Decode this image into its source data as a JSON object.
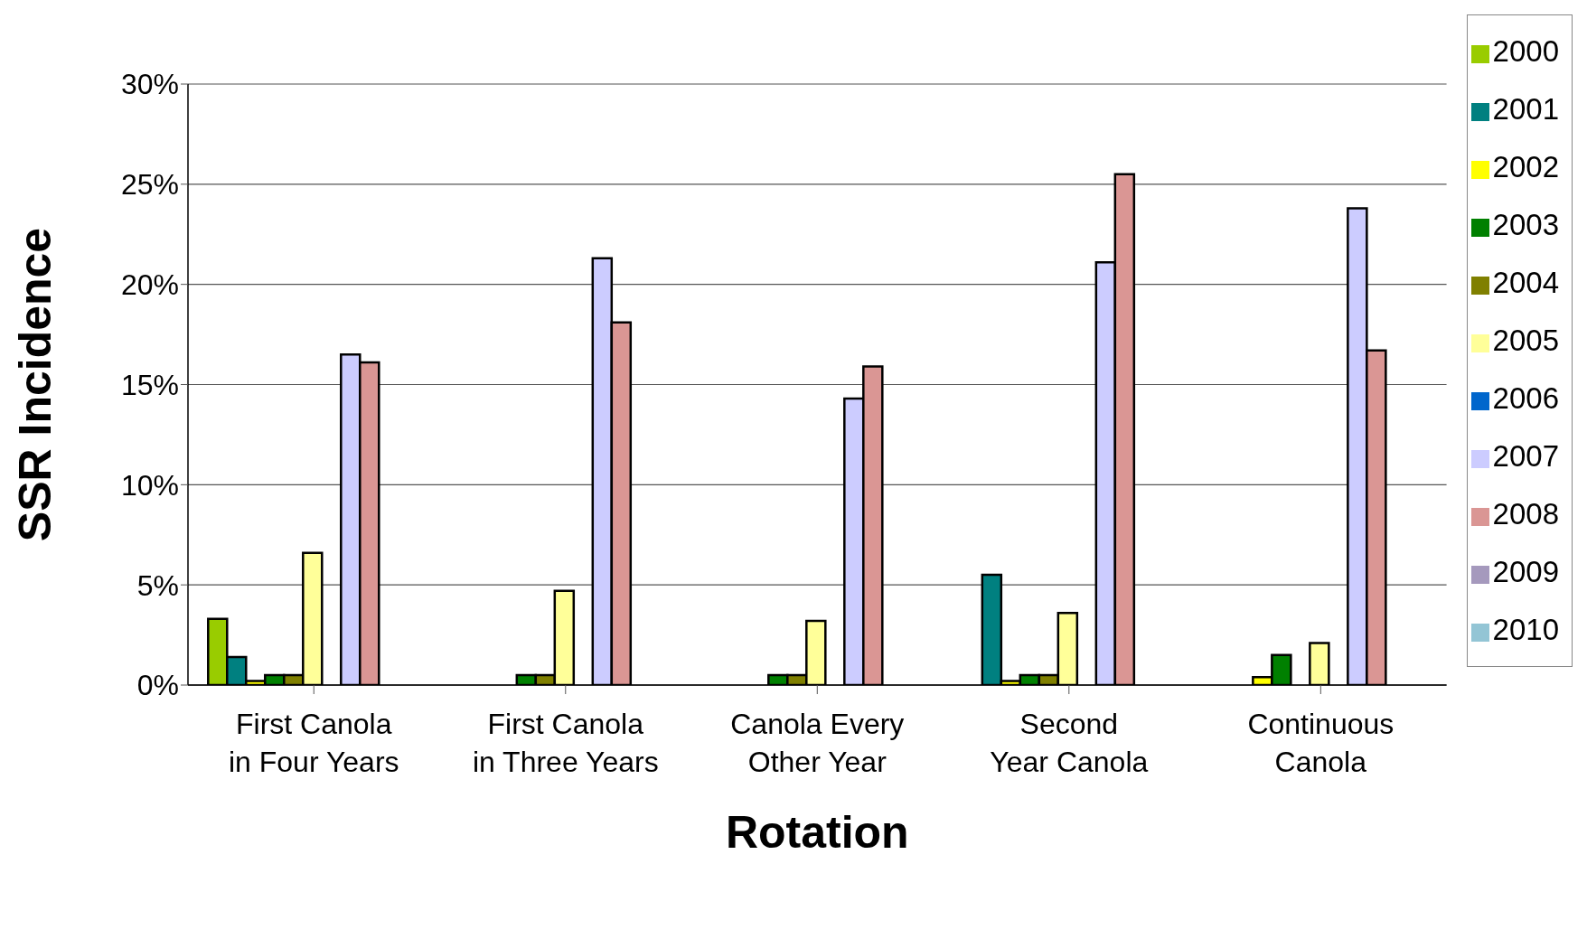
{
  "chart_data": {
    "type": "bar",
    "xlabel": "Rotation",
    "ylabel": "SSR Incidence",
    "categories": [
      "First Canola in Four Years",
      "First Canola in Three Years",
      "Canola Every Other Year",
      "Second Year Canola",
      "Continuous Canola"
    ],
    "series": [
      {
        "name": "2000",
        "color": "#99cc00",
        "values": [
          3.3,
          null,
          null,
          null,
          null
        ]
      },
      {
        "name": "2001",
        "color": "#008080",
        "values": [
          1.4,
          null,
          null,
          5.5,
          null
        ]
      },
      {
        "name": "2002",
        "color": "#ffff00",
        "values": [
          0.2,
          null,
          null,
          0.2,
          0.4
        ]
      },
      {
        "name": "2003",
        "color": "#008000",
        "values": [
          0.5,
          0.5,
          0.5,
          0.5,
          1.5
        ]
      },
      {
        "name": "2004",
        "color": "#808000",
        "values": [
          0.5,
          0.5,
          0.5,
          0.5,
          null
        ]
      },
      {
        "name": "2005",
        "color": "#ffff99",
        "values": [
          6.6,
          4.7,
          3.2,
          3.6,
          2.1
        ]
      },
      {
        "name": "2006",
        "color": "#0066cc",
        "values": [
          null,
          null,
          null,
          null,
          null
        ]
      },
      {
        "name": "2007",
        "color": "#ccccff",
        "values": [
          16.5,
          21.3,
          14.3,
          21.1,
          23.8
        ]
      },
      {
        "name": "2008",
        "color": "#da9694",
        "values": [
          16.1,
          18.1,
          15.9,
          25.5,
          16.7
        ]
      },
      {
        "name": "2009",
        "color": "#a599bd",
        "values": [
          null,
          null,
          null,
          null,
          null
        ]
      },
      {
        "name": "2010",
        "color": "#93c5d5",
        "values": [
          null,
          null,
          null,
          null,
          null
        ]
      }
    ],
    "ylim": [
      0,
      30
    ],
    "yticks": [
      {
        "value": 0,
        "label": "0%"
      },
      {
        "value": 5,
        "label": "5%"
      },
      {
        "value": 10,
        "label": "10%"
      },
      {
        "value": 15,
        "label": "15%"
      },
      {
        "value": 20,
        "label": "20%"
      },
      {
        "value": 25,
        "label": "25%"
      },
      {
        "value": 30,
        "label": "30%"
      }
    ],
    "grid": "y",
    "legend": "right"
  }
}
